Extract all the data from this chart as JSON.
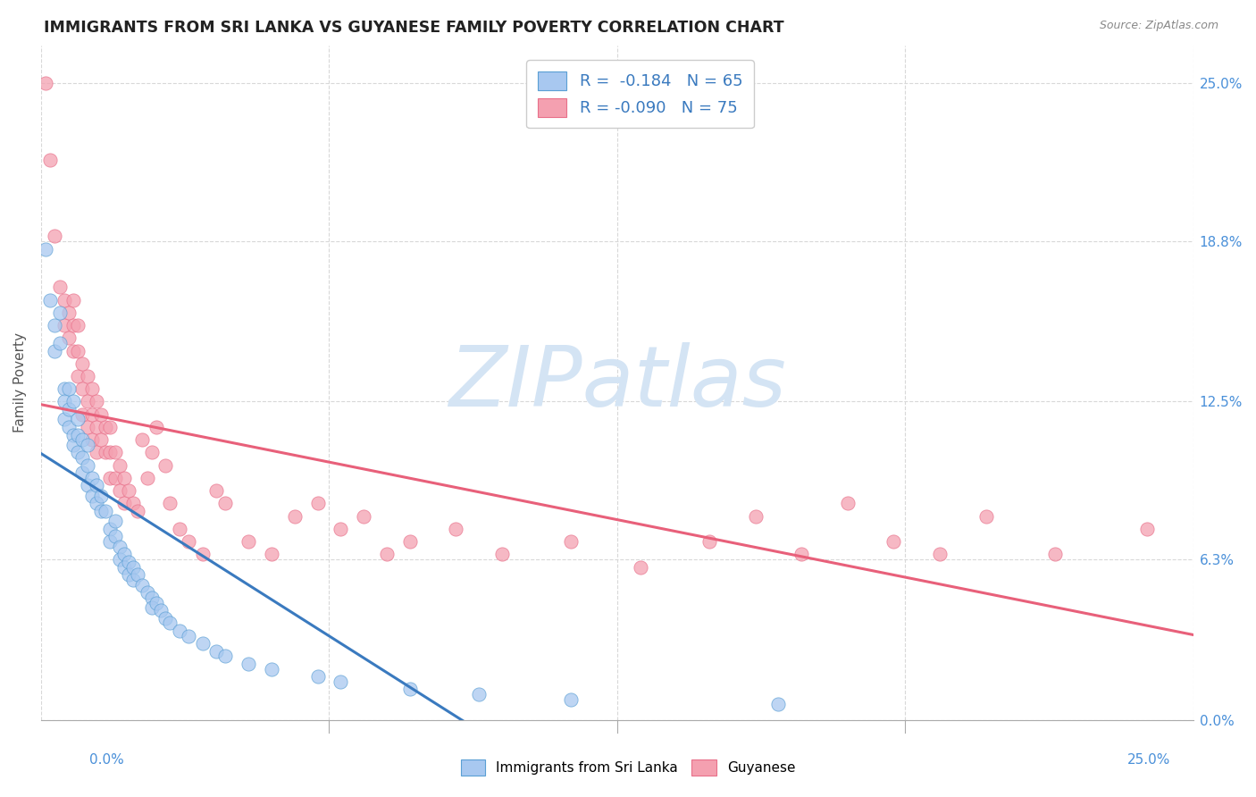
{
  "title": "IMMIGRANTS FROM SRI LANKA VS GUYANESE FAMILY POVERTY CORRELATION CHART",
  "source": "Source: ZipAtlas.com",
  "ylabel": "Family Poverty",
  "ytick_values": [
    0.0,
    0.063,
    0.125,
    0.188,
    0.25
  ],
  "ytick_labels": [
    "0.0%",
    "6.3%",
    "12.5%",
    "18.8%",
    "25.0%"
  ],
  "xlim": [
    0.0,
    0.25
  ],
  "ylim": [
    0.0,
    0.265
  ],
  "sri_lanka_color": "#a8c8f0",
  "guyanese_color": "#f4a0b0",
  "sri_lanka_edge_color": "#5a9fd4",
  "guyanese_edge_color": "#e8708a",
  "sri_lanka_line_color": "#3a7abf",
  "guyanese_line_color": "#e8607a",
  "sri_lanka_line_ext_color": "#b8d0e8",
  "watermark": "ZIPatlas",
  "watermark_color": "#d4e4f4",
  "grid_color": "#d8d8d8",
  "sri_lanka_scatter": [
    [
      0.001,
      0.185
    ],
    [
      0.002,
      0.165
    ],
    [
      0.003,
      0.155
    ],
    [
      0.003,
      0.145
    ],
    [
      0.004,
      0.148
    ],
    [
      0.004,
      0.16
    ],
    [
      0.005,
      0.13
    ],
    [
      0.005,
      0.125
    ],
    [
      0.005,
      0.118
    ],
    [
      0.006,
      0.13
    ],
    [
      0.006,
      0.122
    ],
    [
      0.006,
      0.115
    ],
    [
      0.007,
      0.125
    ],
    [
      0.007,
      0.112
    ],
    [
      0.007,
      0.108
    ],
    [
      0.008,
      0.118
    ],
    [
      0.008,
      0.112
    ],
    [
      0.008,
      0.105
    ],
    [
      0.009,
      0.11
    ],
    [
      0.009,
      0.103
    ],
    [
      0.009,
      0.097
    ],
    [
      0.01,
      0.108
    ],
    [
      0.01,
      0.1
    ],
    [
      0.01,
      0.092
    ],
    [
      0.011,
      0.095
    ],
    [
      0.011,
      0.088
    ],
    [
      0.012,
      0.092
    ],
    [
      0.012,
      0.085
    ],
    [
      0.013,
      0.088
    ],
    [
      0.013,
      0.082
    ],
    [
      0.014,
      0.082
    ],
    [
      0.015,
      0.075
    ],
    [
      0.015,
      0.07
    ],
    [
      0.016,
      0.078
    ],
    [
      0.016,
      0.072
    ],
    [
      0.017,
      0.068
    ],
    [
      0.017,
      0.063
    ],
    [
      0.018,
      0.065
    ],
    [
      0.018,
      0.06
    ],
    [
      0.019,
      0.062
    ],
    [
      0.019,
      0.057
    ],
    [
      0.02,
      0.06
    ],
    [
      0.02,
      0.055
    ],
    [
      0.021,
      0.057
    ],
    [
      0.022,
      0.053
    ],
    [
      0.023,
      0.05
    ],
    [
      0.024,
      0.048
    ],
    [
      0.024,
      0.044
    ],
    [
      0.025,
      0.046
    ],
    [
      0.026,
      0.043
    ],
    [
      0.027,
      0.04
    ],
    [
      0.028,
      0.038
    ],
    [
      0.03,
      0.035
    ],
    [
      0.032,
      0.033
    ],
    [
      0.035,
      0.03
    ],
    [
      0.038,
      0.027
    ],
    [
      0.04,
      0.025
    ],
    [
      0.045,
      0.022
    ],
    [
      0.05,
      0.02
    ],
    [
      0.06,
      0.017
    ],
    [
      0.065,
      0.015
    ],
    [
      0.08,
      0.012
    ],
    [
      0.095,
      0.01
    ],
    [
      0.115,
      0.008
    ],
    [
      0.16,
      0.006
    ]
  ],
  "guyanese_scatter": [
    [
      0.001,
      0.25
    ],
    [
      0.002,
      0.22
    ],
    [
      0.003,
      0.19
    ],
    [
      0.004,
      0.17
    ],
    [
      0.005,
      0.165
    ],
    [
      0.005,
      0.155
    ],
    [
      0.006,
      0.16
    ],
    [
      0.006,
      0.15
    ],
    [
      0.007,
      0.165
    ],
    [
      0.007,
      0.155
    ],
    [
      0.007,
      0.145
    ],
    [
      0.008,
      0.155
    ],
    [
      0.008,
      0.145
    ],
    [
      0.008,
      0.135
    ],
    [
      0.009,
      0.14
    ],
    [
      0.009,
      0.13
    ],
    [
      0.009,
      0.12
    ],
    [
      0.01,
      0.135
    ],
    [
      0.01,
      0.125
    ],
    [
      0.01,
      0.115
    ],
    [
      0.011,
      0.13
    ],
    [
      0.011,
      0.12
    ],
    [
      0.011,
      0.11
    ],
    [
      0.012,
      0.125
    ],
    [
      0.012,
      0.115
    ],
    [
      0.012,
      0.105
    ],
    [
      0.013,
      0.12
    ],
    [
      0.013,
      0.11
    ],
    [
      0.014,
      0.115
    ],
    [
      0.014,
      0.105
    ],
    [
      0.015,
      0.115
    ],
    [
      0.015,
      0.105
    ],
    [
      0.015,
      0.095
    ],
    [
      0.016,
      0.105
    ],
    [
      0.016,
      0.095
    ],
    [
      0.017,
      0.1
    ],
    [
      0.017,
      0.09
    ],
    [
      0.018,
      0.095
    ],
    [
      0.018,
      0.085
    ],
    [
      0.019,
      0.09
    ],
    [
      0.02,
      0.085
    ],
    [
      0.021,
      0.082
    ],
    [
      0.022,
      0.11
    ],
    [
      0.023,
      0.095
    ],
    [
      0.024,
      0.105
    ],
    [
      0.025,
      0.115
    ],
    [
      0.027,
      0.1
    ],
    [
      0.028,
      0.085
    ],
    [
      0.03,
      0.075
    ],
    [
      0.032,
      0.07
    ],
    [
      0.035,
      0.065
    ],
    [
      0.038,
      0.09
    ],
    [
      0.04,
      0.085
    ],
    [
      0.045,
      0.07
    ],
    [
      0.05,
      0.065
    ],
    [
      0.055,
      0.08
    ],
    [
      0.06,
      0.085
    ],
    [
      0.065,
      0.075
    ],
    [
      0.07,
      0.08
    ],
    [
      0.075,
      0.065
    ],
    [
      0.08,
      0.07
    ],
    [
      0.09,
      0.075
    ],
    [
      0.1,
      0.065
    ],
    [
      0.115,
      0.07
    ],
    [
      0.13,
      0.06
    ],
    [
      0.145,
      0.07
    ],
    [
      0.155,
      0.08
    ],
    [
      0.165,
      0.065
    ],
    [
      0.175,
      0.085
    ],
    [
      0.185,
      0.07
    ],
    [
      0.195,
      0.065
    ],
    [
      0.205,
      0.08
    ],
    [
      0.22,
      0.065
    ],
    [
      0.24,
      0.075
    ]
  ]
}
